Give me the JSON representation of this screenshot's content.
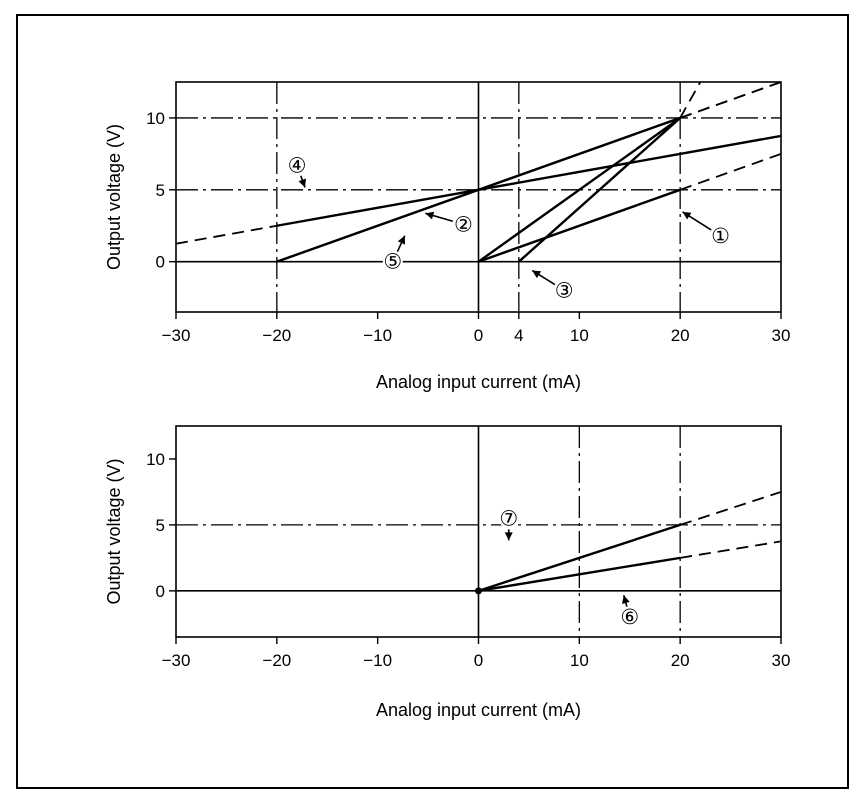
{
  "chart_data": [
    {
      "type": "line",
      "xlabel": "Analog input current (mA)",
      "ylabel": "Output voltage (V)",
      "xlim": [
        -30,
        30
      ],
      "ylim": [
        -3.5,
        12.5
      ],
      "x_ticks": [
        -30,
        -20,
        -10,
        0,
        4,
        10,
        20,
        30
      ],
      "y_ticks": [
        0,
        5,
        10
      ],
      "x_dashdot_lines": [
        -20,
        4,
        20
      ],
      "y_dashdot_lines": [
        5,
        10
      ],
      "x_solid_lines": [
        0
      ],
      "y_solid_lines": [
        0
      ],
      "series": [
        {
          "label": "①",
          "x": [
            0,
            20
          ],
          "y": [
            0,
            5
          ],
          "extrapolated": {
            "x": [
              20,
              30
            ],
            "y": [
              5,
              7.5
            ]
          }
        },
        {
          "label": "②",
          "x": [
            0,
            20
          ],
          "y": [
            0,
            10
          ],
          "extrapolated": {
            "x": [
              20,
              30
            ],
            "y": [
              10,
              12.5
            ]
          }
        },
        {
          "label": "③",
          "x": [
            4,
            20
          ],
          "y": [
            0,
            10
          ],
          "extrapolated": {
            "x": [
              20,
              22
            ],
            "y": [
              10,
              12.5
            ]
          }
        },
        {
          "label": "④",
          "x": [
            -20,
            30
          ],
          "y": [
            2.5,
            8.75
          ],
          "extrapolated": {
            "x": [
              -30,
              -20
            ],
            "y": [
              1.25,
              2.5
            ]
          }
        },
        {
          "label": "⑤",
          "x": [
            -20,
            20
          ],
          "y": [
            0,
            10
          ],
          "extrapolated": {
            "x": [
              20,
              30
            ],
            "y": [
              10,
              12.5
            ]
          }
        }
      ],
      "annotations": [
        {
          "text": "①",
          "x": 24,
          "y": 1.8
        },
        {
          "text": "②",
          "x": -1.5,
          "y": 2.6
        },
        {
          "text": "③",
          "x": 8.5,
          "y": -2.0
        },
        {
          "text": "④",
          "x": -18,
          "y": 6.7
        },
        {
          "text": "⑤",
          "x": -8.5,
          "y": 0
        }
      ]
    },
    {
      "type": "line",
      "xlabel": "Analog input current (mA)",
      "ylabel": "Output voltage (V)",
      "xlim": [
        -30,
        30
      ],
      "ylim": [
        -3.5,
        12.5
      ],
      "x_ticks": [
        -30,
        -20,
        -10,
        0,
        10,
        20,
        30
      ],
      "y_ticks": [
        0,
        5,
        10
      ],
      "x_dashdot_lines": [
        10,
        20
      ],
      "y_dashdot_lines": [
        5
      ],
      "x_solid_lines": [
        0
      ],
      "y_solid_lines": [
        0
      ],
      "series": [
        {
          "label": "⑥",
          "x": [
            0,
            20
          ],
          "y": [
            0,
            2.5
          ],
          "extrapolated": {
            "x": [
              20,
              30
            ],
            "y": [
              2.5,
              3.75
            ]
          }
        },
        {
          "label": "⑦",
          "x": [
            0,
            20
          ],
          "y": [
            0,
            5
          ],
          "extrapolated": {
            "x": [
              20,
              30
            ],
            "y": [
              5,
              7.5
            ]
          }
        }
      ],
      "annotations": [
        {
          "text": "⑦",
          "x": 3.0,
          "y": 5.5
        },
        {
          "text": "⑥",
          "x": 15.0,
          "y": -2.0
        }
      ]
    }
  ],
  "colors": {
    "ink": "#000000",
    "background": "#ffffff"
  }
}
